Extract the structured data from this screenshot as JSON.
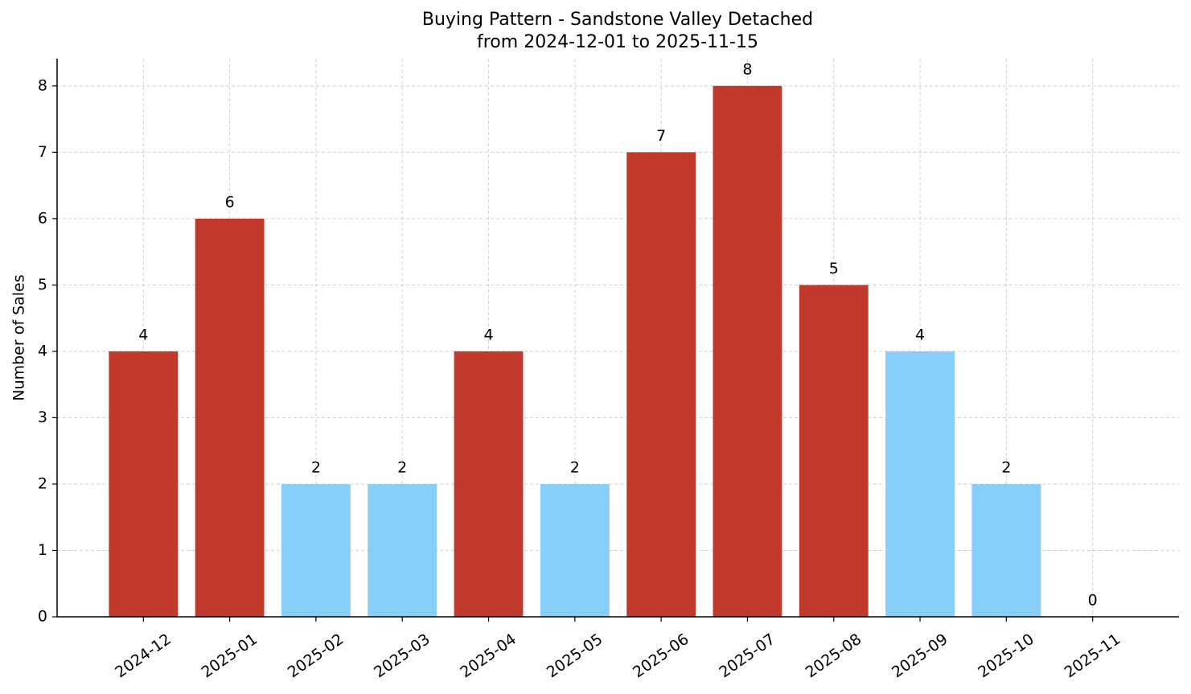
{
  "chart_data": {
    "type": "bar",
    "title": "Buying Pattern - Sandstone Valley Detached",
    "subtitle": "from 2024-12-01 to 2025-11-15",
    "y_label": "Number of Sales",
    "categories": [
      "2024-12",
      "2025-01",
      "2025-02",
      "2025-03",
      "2025-04",
      "2025-05",
      "2025-06",
      "2025-07",
      "2025-08",
      "2025-09",
      "2025-10",
      "2025-11"
    ],
    "values": [
      4,
      6,
      2,
      2,
      4,
      2,
      7,
      8,
      5,
      4,
      2,
      0
    ],
    "colors": [
      "#c0392b",
      "#c0392b",
      "#87cefa",
      "#87cefa",
      "#c0392b",
      "#87cefa",
      "#c0392b",
      "#c0392b",
      "#c0392b",
      "#87cefa",
      "#87cefa",
      "#87cefa"
    ],
    "ylim": [
      0,
      8.41
    ],
    "yticks": [
      0,
      1,
      2,
      3,
      4,
      5,
      6,
      7,
      8
    ],
    "grid": true
  }
}
